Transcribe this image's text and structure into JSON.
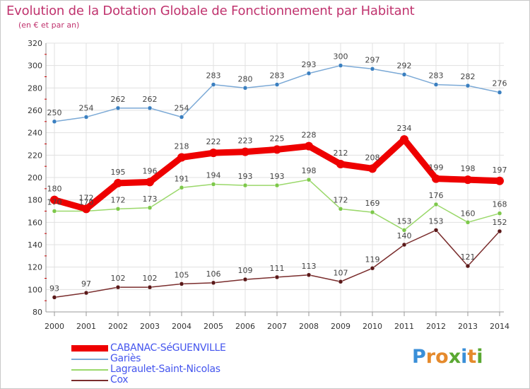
{
  "header": {
    "title": "Evolution de la Dotation Globale de Fonctionnement par Habitant",
    "subtitle": "(en € et par an)"
  },
  "colors": {
    "title": "#c0336e",
    "grid": "#e0e0e0",
    "legend_text": "#4455ee",
    "axis_minor_tick": "#cc0000"
  },
  "brand": {
    "text": "Proxiti",
    "letter_colors": [
      "#3a8fd8",
      "#e58a2c",
      "#e58a2c",
      "#5aa832",
      "#3a8fd8",
      "#e58a2c",
      "#5aa832"
    ]
  },
  "chart_data": {
    "type": "line",
    "title": "Evolution de la Dotation Globale de Fonctionnement par Habitant",
    "subtitle": "(en € et par an)",
    "x": [
      "2000",
      "2001",
      "2002",
      "2003",
      "2004",
      "2005",
      "2006",
      "2007",
      "2008",
      "2009",
      "2010",
      "2011",
      "2012",
      "2013",
      "2014"
    ],
    "ylim": [
      80,
      320
    ],
    "yticks": [
      80,
      100,
      120,
      140,
      160,
      180,
      200,
      220,
      240,
      260,
      280,
      300,
      320
    ],
    "grid": true,
    "legend_position": "bottom-left",
    "series": [
      {
        "name": "CABANAC-SéGUENVILLE",
        "color": "#ee0000",
        "marker": "#ee0000",
        "emphasis": true,
        "values": [
          180,
          172,
          195,
          196,
          218,
          222,
          223,
          225,
          228,
          212,
          208,
          234,
          199,
          198,
          197
        ]
      },
      {
        "name": "Gariès",
        "color": "#7ba9d6",
        "marker": "#3a7fc0",
        "values": [
          250,
          254,
          262,
          262,
          254,
          283,
          280,
          283,
          293,
          300,
          297,
          292,
          283,
          282,
          276
        ]
      },
      {
        "name": "Lagraulet-Saint-Nicolas",
        "color": "#9ad86a",
        "marker": "#7dc84a",
        "values": [
          170,
          170,
          172,
          173,
          191,
          194,
          193,
          193,
          198,
          172,
          169,
          153,
          176,
          160,
          168
        ]
      },
      {
        "name": "Cox",
        "color": "#7a2d2d",
        "marker": "#5a1818",
        "values": [
          93,
          97,
          102,
          102,
          105,
          106,
          109,
          111,
          113,
          107,
          119,
          140,
          153,
          121,
          152
        ]
      }
    ]
  }
}
